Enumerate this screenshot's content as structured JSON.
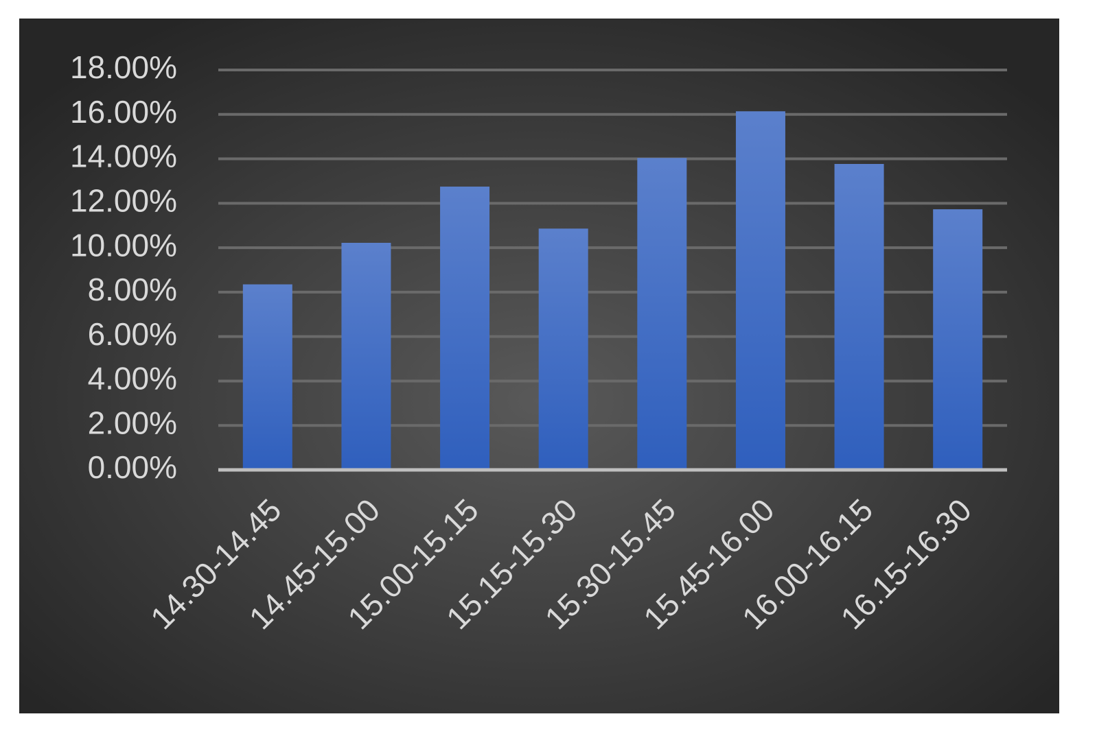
{
  "chart_data": {
    "type": "bar",
    "categories": [
      "14.30-14.45",
      "14.45-15.00",
      "15.00-15.15",
      "15.15-15.30",
      "15.30-15.45",
      "15.45-16.00",
      "16.00-16.15",
      "16.15-16.30"
    ],
    "values": [
      8.35,
      10.22,
      12.75,
      10.86,
      14.04,
      16.14,
      13.77,
      11.73
    ],
    "color": "#4472c4",
    "ylim": [
      0,
      18
    ],
    "yticks": [
      {
        "value": 0,
        "label": "0.00%"
      },
      {
        "value": 2,
        "label": "2.00%"
      },
      {
        "value": 4,
        "label": "4.00%"
      },
      {
        "value": 6,
        "label": "6.00%"
      },
      {
        "value": 8,
        "label": "8.00%"
      },
      {
        "value": 10,
        "label": "10.00%"
      },
      {
        "value": 12,
        "label": "12.00%"
      },
      {
        "value": 14,
        "label": "14.00%"
      },
      {
        "value": 16,
        "label": "16.00%"
      },
      {
        "value": 18,
        "label": "18.00%"
      }
    ],
    "grid": true
  }
}
